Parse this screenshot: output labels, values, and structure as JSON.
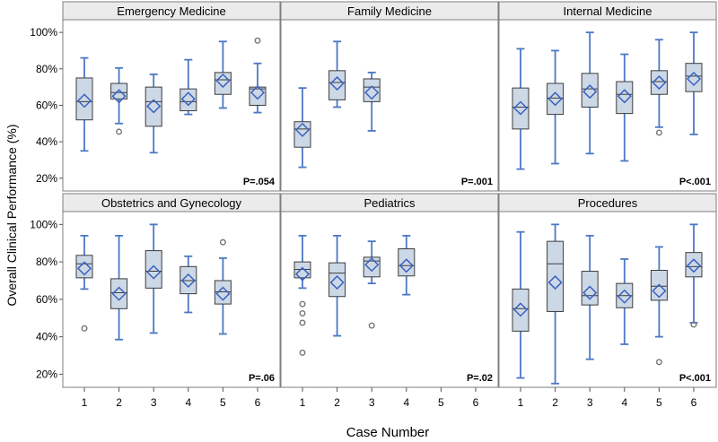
{
  "chart_data": {
    "type": "boxplot",
    "ylabel": "Overall Clinical Performance (%)",
    "xlabel": "Case Number",
    "categories": [
      "1",
      "2",
      "3",
      "4",
      "5",
      "6"
    ],
    "yticks": [
      20,
      40,
      60,
      80,
      100
    ],
    "ytick_labels": [
      "20%",
      "40%",
      "60%",
      "80%",
      "100%"
    ],
    "ylim": [
      13,
      104
    ],
    "colors": {
      "box_fill": "#cdd8e6",
      "whisker": "#4c78c4",
      "mean_marker": "#3a62c0",
      "outlier": "#777777",
      "panel_header": "#ebebeb"
    },
    "panels": [
      {
        "title": "Emergency Medicine",
        "pvalue": "P=.054",
        "boxes": [
          {
            "case": "1",
            "min": 35,
            "q1": 52,
            "median": 62,
            "q3": 75,
            "max": 86,
            "mean": 62.5,
            "outliers": []
          },
          {
            "case": "2",
            "min": 50,
            "q1": 63.5,
            "median": 67,
            "q3": 72,
            "max": 80.5,
            "mean": 65,
            "outliers": [
              45.5
            ]
          },
          {
            "case": "3",
            "min": 34,
            "q1": 48.5,
            "median": 62,
            "q3": 70,
            "max": 77,
            "mean": 59.5,
            "outliers": []
          },
          {
            "case": "4",
            "min": 55,
            "q1": 57,
            "median": 62,
            "q3": 69,
            "max": 85,
            "mean": 63.5,
            "outliers": []
          },
          {
            "case": "5",
            "min": 58.5,
            "q1": 66,
            "median": 74,
            "q3": 78,
            "max": 95,
            "mean": 73.5,
            "outliers": []
          },
          {
            "case": "6",
            "min": 56,
            "q1": 60,
            "median": 69,
            "q3": 70,
            "max": 83,
            "mean": 67,
            "outliers": [
              95.5
            ]
          }
        ]
      },
      {
        "title": "Family Medicine",
        "pvalue": "P=.001",
        "boxes": [
          {
            "case": "1",
            "min": 26,
            "q1": 37,
            "median": 47,
            "q3": 51,
            "max": 69.5,
            "mean": 46.5,
            "outliers": []
          },
          {
            "case": "2",
            "min": 59,
            "q1": 63,
            "median": 72.5,
            "q3": 79,
            "max": 95,
            "mean": 72,
            "outliers": []
          },
          {
            "case": "3",
            "min": 46,
            "q1": 62,
            "median": 70,
            "q3": 74.5,
            "max": 78,
            "mean": 67,
            "outliers": []
          }
        ]
      },
      {
        "title": "Internal Medicine",
        "pvalue": "P<.001",
        "boxes": [
          {
            "case": "1",
            "min": 25,
            "q1": 47,
            "median": 59,
            "q3": 69.5,
            "max": 91,
            "mean": 58.5,
            "outliers": []
          },
          {
            "case": "2",
            "min": 28,
            "q1": 55,
            "median": 64,
            "q3": 72,
            "max": 90,
            "mean": 63.5,
            "outliers": []
          },
          {
            "case": "3",
            "min": 33.5,
            "q1": 59,
            "median": 69,
            "q3": 77.5,
            "max": 100,
            "mean": 67.5,
            "outliers": []
          },
          {
            "case": "4",
            "min": 29.5,
            "q1": 55.5,
            "median": 66,
            "q3": 73,
            "max": 88,
            "mean": 65,
            "outliers": []
          },
          {
            "case": "5",
            "min": 48,
            "q1": 66,
            "median": 73,
            "q3": 79,
            "max": 96,
            "mean": 72.5,
            "outliers": [
              45
            ]
          },
          {
            "case": "6",
            "min": 44,
            "q1": 67.5,
            "median": 76,
            "q3": 83,
            "max": 100,
            "mean": 74.5,
            "outliers": []
          }
        ]
      },
      {
        "title": "Obstetrics and Gynecology",
        "pvalue": "P=.06",
        "boxes": [
          {
            "case": "1",
            "min": 65.5,
            "q1": 71.5,
            "median": 79,
            "q3": 83.5,
            "max": 94,
            "mean": 76.5,
            "outliers": [
              44.5
            ]
          },
          {
            "case": "2",
            "min": 38.5,
            "q1": 55,
            "median": 63.5,
            "q3": 71,
            "max": 94,
            "mean": 63,
            "outliers": []
          },
          {
            "case": "3",
            "min": 42,
            "q1": 66,
            "median": 75,
            "q3": 86,
            "max": 100,
            "mean": 74.5,
            "outliers": []
          },
          {
            "case": "4",
            "min": 53,
            "q1": 63,
            "median": 70,
            "q3": 77.5,
            "max": 83,
            "mean": 70,
            "outliers": []
          },
          {
            "case": "5",
            "min": 41.5,
            "q1": 57.5,
            "median": 64,
            "q3": 70,
            "max": 82,
            "mean": 63,
            "outliers": [
              90.5
            ]
          }
        ]
      },
      {
        "title": "Pediatrics",
        "pvalue": "P=.02",
        "boxes": [
          {
            "case": "1",
            "min": 66,
            "q1": 71.5,
            "median": 76,
            "q3": 80,
            "max": 94,
            "mean": 73.5,
            "outliers": [
              57.5,
              52.5,
              47.5,
              31.5
            ]
          },
          {
            "case": "2",
            "min": 40.5,
            "q1": 61.5,
            "median": 74,
            "q3": 79.5,
            "max": 94,
            "mean": 69,
            "outliers": []
          },
          {
            "case": "3",
            "min": 68.5,
            "q1": 72,
            "median": 80.5,
            "q3": 82.5,
            "max": 91,
            "mean": 78.5,
            "outliers": [
              46
            ]
          },
          {
            "case": "4",
            "min": 62.5,
            "q1": 72.5,
            "median": 78,
            "q3": 87,
            "max": 94,
            "mean": 78,
            "outliers": []
          }
        ]
      },
      {
        "title": "Procedures",
        "pvalue": "P<.001",
        "boxes": [
          {
            "case": "1",
            "min": 18,
            "q1": 43,
            "median": 55,
            "q3": 65.5,
            "max": 96,
            "mean": 54.5,
            "outliers": []
          },
          {
            "case": "2",
            "min": 15,
            "q1": 53.5,
            "median": 79,
            "q3": 91,
            "max": 100,
            "mean": 69,
            "outliers": []
          },
          {
            "case": "3",
            "min": 28,
            "q1": 57,
            "median": 62,
            "q3": 75,
            "max": 94,
            "mean": 63.5,
            "outliers": []
          },
          {
            "case": "4",
            "min": 36,
            "q1": 55.5,
            "median": 62,
            "q3": 68.5,
            "max": 81.5,
            "mean": 61.5,
            "outliers": []
          },
          {
            "case": "5",
            "min": 40,
            "q1": 59.5,
            "median": 67,
            "q3": 75.5,
            "max": 88,
            "mean": 64.5,
            "outliers": [
              26.5
            ]
          },
          {
            "case": "6",
            "min": 47.5,
            "q1": 72,
            "median": 77.5,
            "q3": 85,
            "max": 100,
            "mean": 78,
            "outliers": [
              46.5
            ]
          }
        ]
      }
    ]
  }
}
